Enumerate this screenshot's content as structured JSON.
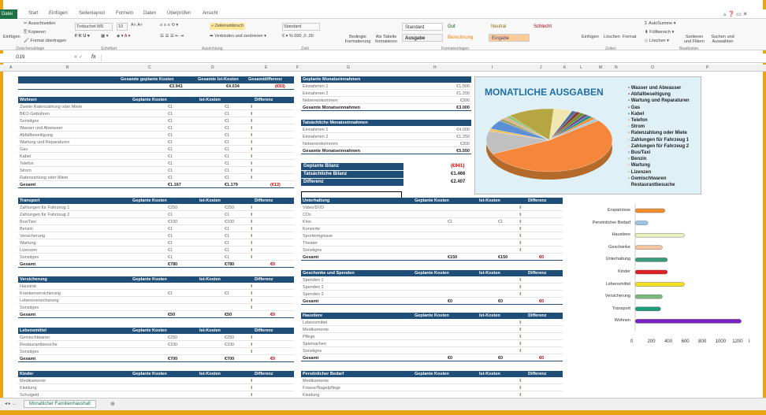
{
  "tabs": [
    "Datei",
    "Start",
    "Einfügen",
    "Seitenlayout",
    "Formeln",
    "Daten",
    "Überprüfen",
    "Ansicht"
  ],
  "ribbon": {
    "paste": "Einfügen",
    "cut": "Ausschneiden",
    "copy": "Kopieren",
    "painter": "Format übertragen",
    "font": "Trebuchet MS",
    "size": "10",
    "wrap": "Zeilenumbruch",
    "merge": "Verbinden und zentrieren",
    "numfmt": "Standard",
    "cond": "Bedingte Formatierung",
    "astable": "Als Tabelle formatieren",
    "styles": [
      {
        "t": "Standard",
        "bg": "#ffffff",
        "c": "#333"
      },
      {
        "t": "Gut",
        "bg": "#c6efce",
        "c": "#006100"
      },
      {
        "t": "Neutral",
        "bg": "#ffeb9c",
        "c": "#9c6500"
      },
      {
        "t": "Schlecht",
        "bg": "#ffc7ce",
        "c": "#9c0006"
      },
      {
        "t": "Ausgabe",
        "bg": "#f2f2f2",
        "c": "#3f3f3f"
      },
      {
        "t": "Berechnung",
        "bg": "#f2f2f2",
        "c": "#fa7d00"
      },
      {
        "t": "Eingabe",
        "bg": "#ffcc99",
        "c": "#3f3f76"
      }
    ],
    "ins": "Einfügen",
    "del": "Löschen",
    "fmt": "Format",
    "autosum": "AutoSumme",
    "fill": "Füllbereich",
    "clear": "Löschen",
    "sort": "Sortieren und Filtern",
    "find": "Suchen und Auswählen",
    "groups": [
      "Zwischenablage",
      "Schriftart",
      "Ausrichtung",
      "Zahl",
      "Formatvorlagen",
      "Zellen",
      "Bearbeiten"
    ]
  },
  "namebox": "G19",
  "fx": "fx",
  "cols": [
    "A",
    "B",
    "C",
    "D",
    "E",
    "F",
    "G",
    "H",
    "I",
    "J",
    "K",
    "L",
    "M",
    "N",
    "O",
    "P"
  ],
  "summary": {
    "h1": "Gesamte geplante Kosten",
    "h2": "Gesamte Ist-Kosten",
    "h3": "Gesamtdifferenz",
    "v1": "€3.941",
    "v2": "€4.034",
    "v3": "(€93)"
  },
  "income_plan": {
    "title": "Geplante Monatseinnahmen",
    "rows": [
      [
        "Einnahmen 1",
        "€1.500"
      ],
      [
        "Einnahmen 2",
        "€1.200"
      ],
      [
        "Nebeneinkommen",
        "€300"
      ],
      [
        "Gesamte Monatseinnahmen",
        "€3.000"
      ]
    ]
  },
  "income_act": {
    "title": "Tatsächliche Monatseinnahmen",
    "rows": [
      [
        "Einnahmen 1",
        "€4.000"
      ],
      [
        "Einnahmen 2",
        "€1.250"
      ],
      [
        "Nebeneinkommen",
        "€300"
      ],
      [
        "Gesamte Monatseinnahmen",
        "€5.550"
      ]
    ]
  },
  "balance": {
    "rows": [
      [
        "Geplante Bilanz",
        "(€941)"
      ],
      [
        "Tatsächliche Bilanz",
        "€1.466"
      ],
      [
        "Differenz",
        "€2.407"
      ]
    ]
  },
  "cols_lbl": {
    "p": "Geplante Kosten",
    "i": "Ist-Kosten",
    "d": "Differenz"
  },
  "wohnen": {
    "title": "Wohnen",
    "rows": [
      [
        "Zweite Ratenzahlung oder Miete",
        "€1",
        "€1",
        ""
      ],
      [
        "BKO-Gebühren",
        "€1",
        "€1",
        ""
      ],
      [
        "Sonstiges",
        "€1",
        "€1",
        ""
      ],
      [
        "Wasser und Abwasser",
        "€1",
        "€1",
        ""
      ],
      [
        "Abfallbeseitigung",
        "€1",
        "€1",
        ""
      ],
      [
        "Wartung und Reparaturen",
        "€1",
        "€1",
        ""
      ],
      [
        "Gas",
        "€1",
        "€1",
        ""
      ],
      [
        "Kabel",
        "€1",
        "€1",
        ""
      ],
      [
        "Telefon",
        "€1",
        "€1",
        ""
      ],
      [
        "Strom",
        "€1",
        "€1",
        ""
      ],
      [
        "Ratenzahlung oder Miete",
        "€1",
        "€1",
        ""
      ],
      [
        "Gesamt",
        "€1.167",
        "€1.179",
        "(€12)"
      ]
    ]
  },
  "transport": {
    "title": "Transport",
    "rows": [
      [
        "Zahlungen für Fahrzeug 1",
        "€250",
        "€250",
        ""
      ],
      [
        "Zahlungen für Fahrzeug 2",
        "€1",
        "€1",
        ""
      ],
      [
        "Bus/Taxi",
        "€100",
        "€100",
        ""
      ],
      [
        "Benzin",
        "€1",
        "€1",
        ""
      ],
      [
        "Versicherung",
        "€1",
        "€1",
        ""
      ],
      [
        "Wartung",
        "€1",
        "€1",
        ""
      ],
      [
        "Lizenzen",
        "€1",
        "€1",
        ""
      ],
      [
        "Sonstiges",
        "€1",
        "€1",
        ""
      ],
      [
        "Gesamt",
        "€780",
        "€780",
        "€0"
      ]
    ]
  },
  "vers": {
    "title": "Versicherung",
    "rows": [
      [
        "Haustrat",
        "",
        "",
        ""
      ],
      [
        "Krankenversicherung",
        "€1",
        "€1",
        ""
      ],
      [
        "Lebensversicherung",
        "",
        "",
        ""
      ],
      [
        "Sonstiges",
        "",
        "",
        ""
      ],
      [
        "Gesamt",
        "€50",
        "€50",
        "€0"
      ]
    ]
  },
  "lebens": {
    "title": "Lebensmittel",
    "rows": [
      [
        "Gemischtwaren",
        "€250",
        "€250",
        ""
      ],
      [
        "Restaurantbesuche",
        "€100",
        "€100",
        ""
      ],
      [
        "Sonstiges",
        "",
        "",
        ""
      ],
      [
        "Gesamt",
        "€700",
        "€700",
        "€0"
      ]
    ]
  },
  "kinder": {
    "title": "Kinder",
    "rows": [
      [
        "Medikamente",
        "",
        "",
        ""
      ],
      [
        "Kleidung",
        "",
        "",
        ""
      ],
      [
        "Schulgeld",
        "",
        "",
        ""
      ]
    ]
  },
  "unter": {
    "title": "Unterhaltung",
    "rows": [
      [
        "Video/DVD",
        "",
        "",
        ""
      ],
      [
        "CDs",
        "",
        "",
        ""
      ],
      [
        "Kino",
        "€1",
        "€1",
        ""
      ],
      [
        "Konzerte",
        "",
        "",
        ""
      ],
      [
        "Sportereignisse",
        "",
        "",
        ""
      ],
      [
        "Theater",
        "",
        "",
        ""
      ],
      [
        "Sonstiges",
        "",
        "",
        ""
      ],
      [
        "Gesamt",
        "€150",
        "€150",
        "€0"
      ]
    ]
  },
  "gesch": {
    "title": "Geschenke und Spenden",
    "rows": [
      [
        "Spenden 1",
        "",
        "",
        ""
      ],
      [
        "Spenden 2",
        "",
        "",
        ""
      ],
      [
        "Spenden 3",
        "",
        "",
        ""
      ],
      [
        "Gesamt",
        "€0",
        "€0",
        "€0"
      ]
    ]
  },
  "haus": {
    "title": "Haustiere",
    "rows": [
      [
        "Lebensmittel",
        "",
        "",
        ""
      ],
      [
        "Medikamente",
        "",
        "",
        ""
      ],
      [
        "Pflege",
        "",
        "",
        ""
      ],
      [
        "Spielsachen",
        "",
        "",
        ""
      ],
      [
        "Sonstiges",
        "",
        "",
        ""
      ],
      [
        "Gesamt",
        "€0",
        "€0",
        "€0"
      ]
    ]
  },
  "pers": {
    "title": "Persönlicher Bedarf",
    "rows": [
      [
        "Medikamente",
        "",
        "",
        ""
      ],
      [
        "Friseur/Nagelpflege",
        "",
        "",
        ""
      ],
      [
        "Kleidung",
        "",
        "",
        ""
      ]
    ]
  },
  "chart_data": [
    {
      "type": "pie",
      "title": "MONATLICHE AUSGABEN",
      "categories": [
        "Wasser und Abwasser",
        "Abfallbeseitigung",
        "Wartung und Reparaturen",
        "Gas",
        "Kabel",
        "Telefon",
        "Strom",
        "Ratenzahlung oder Miete",
        "Zahlungen für Fahrzeug 1",
        "Zahlungen für Fahrzeug 2",
        "Bus/Taxi",
        "Benzin",
        "Wartung",
        "Lizenzen",
        "Gemischtwaren",
        "Restaurantbesuche"
      ],
      "values": [
        1,
        1,
        1,
        1,
        1,
        1,
        1,
        45,
        10,
        1,
        4,
        1,
        1,
        1,
        10,
        4
      ],
      "colors": [
        "#4a6fa5",
        "#8b3a3a",
        "#6b8e23",
        "#6a4c93",
        "#2e8b8b",
        "#f28e2b",
        "#a3c4e3",
        "#f5873c",
        "#c0c0c0",
        "#f2c14e",
        "#5b8fd6",
        "#a0a060",
        "#d9b38c",
        "#93c47d",
        "#b5a642",
        "#f0e6b0"
      ]
    },
    {
      "type": "bar",
      "orientation": "horizontal",
      "categories": [
        "Ersparnisse",
        "Persönlicher Bedarf",
        "Haustiere",
        "Geschenke",
        "Unterhaltung",
        "Kinder",
        "Lebensmittel",
        "Versicherung",
        "Transport",
        "Wohnen"
      ],
      "values": [
        350,
        150,
        580,
        320,
        380,
        380,
        580,
        320,
        300,
        1250
      ],
      "colors": [
        "#f28e2b",
        "#9ec5e8",
        "#e8f0c0",
        "#f5c6a0",
        "#3c9a7c",
        "#e02020",
        "#f5e020",
        "#7cb87c",
        "#1f9a7c",
        "#7a22c0"
      ],
      "xlim": [
        0,
        1300
      ],
      "xticks": [
        0,
        200,
        400,
        600,
        800,
        1000,
        1200
      ],
      "xlabel_trunc": "lap"
    }
  ],
  "sheettab": "Monatlicher Familienhaushalt"
}
